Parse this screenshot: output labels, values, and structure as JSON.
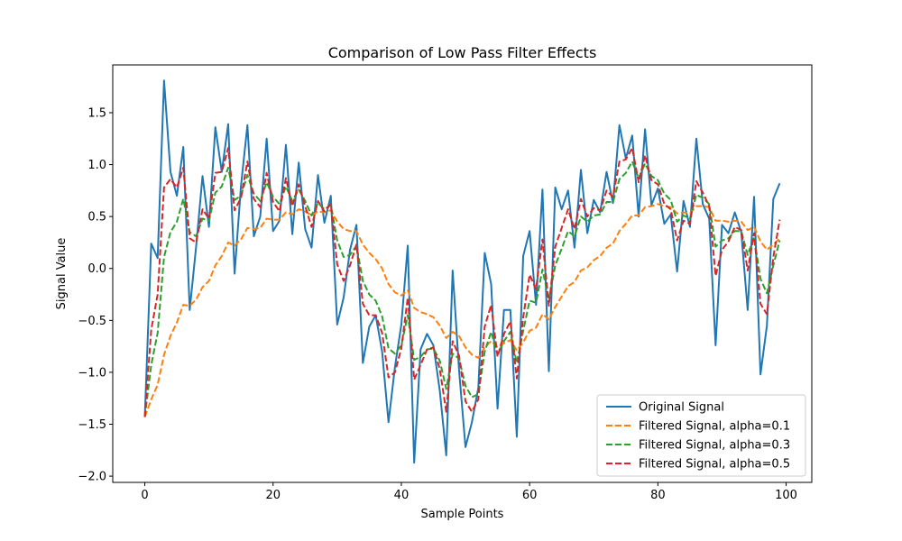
{
  "chart_data": {
    "type": "line",
    "title": "Comparison of Low Pass Filter Effects",
    "xlabel": "Sample Points",
    "ylabel": "Signal Value",
    "xlim": [
      -5,
      104
    ],
    "ylim": [
      -2.06,
      1.96
    ],
    "x_ticks": [
      0,
      20,
      40,
      60,
      80,
      100
    ],
    "x_tick_labels": [
      "0",
      "20",
      "40",
      "60",
      "80",
      "100"
    ],
    "y_ticks": [
      -2.0,
      -1.5,
      -1.0,
      -0.5,
      0.0,
      0.5,
      1.0,
      1.5
    ],
    "y_tick_labels": [
      "−2.0",
      "−1.5",
      "−1.0",
      "−0.5",
      "0.0",
      "0.5",
      "1.0",
      "1.5"
    ],
    "grid": false,
    "legend_position": "lower-right",
    "x": [
      0,
      1,
      2,
      3,
      4,
      5,
      6,
      7,
      8,
      9,
      10,
      11,
      12,
      13,
      14,
      15,
      16,
      17,
      18,
      19,
      20,
      21,
      22,
      23,
      24,
      25,
      26,
      27,
      28,
      29,
      30,
      31,
      32,
      33,
      34,
      35,
      36,
      37,
      38,
      39,
      40,
      41,
      42,
      43,
      44,
      45,
      46,
      47,
      48,
      49,
      50,
      51,
      52,
      53,
      54,
      55,
      56,
      57,
      58,
      59,
      60,
      61,
      62,
      63,
      64,
      65,
      66,
      67,
      68,
      69,
      70,
      71,
      72,
      73,
      74,
      75,
      76,
      77,
      78,
      79,
      80,
      81,
      82,
      83,
      84,
      85,
      86,
      87,
      88,
      89,
      90,
      91,
      92,
      93,
      94,
      95,
      96,
      97,
      98,
      99
    ],
    "series": [
      {
        "name": "Original Signal",
        "color": "#1f77b4",
        "style": "solid",
        "values": [
          -1.43,
          0.24,
          0.1,
          1.81,
          0.93,
          0.7,
          1.17,
          -0.4,
          0.21,
          0.89,
          0.4,
          1.36,
          0.93,
          1.39,
          -0.05,
          0.8,
          1.38,
          0.31,
          0.5,
          1.25,
          0.36,
          0.46,
          1.19,
          0.33,
          1.02,
          0.38,
          0.2,
          0.9,
          0.44,
          0.7,
          -0.54,
          -0.28,
          0.18,
          0.42,
          -0.91,
          -0.56,
          -0.45,
          -0.8,
          -1.48,
          -0.95,
          -0.54,
          0.22,
          -1.87,
          -0.78,
          -0.63,
          -0.74,
          -1.18,
          -1.8,
          -0.02,
          -0.98,
          -1.72,
          -1.48,
          -1.15,
          0.15,
          -0.15,
          -1.35,
          -0.4,
          -0.4,
          -1.62,
          0.12,
          0.36,
          -0.35,
          0.76,
          -0.99,
          0.78,
          0.57,
          0.75,
          0.2,
          0.95,
          0.34,
          0.66,
          0.54,
          0.93,
          0.63,
          1.38,
          1.06,
          1.28,
          0.5,
          1.34,
          0.61,
          0.77,
          0.43,
          0.52,
          -0.03,
          0.65,
          0.4,
          1.25,
          0.62,
          0.48,
          -0.74,
          0.42,
          0.34,
          0.54,
          0.35,
          -0.4,
          0.69,
          -1.02,
          -0.55,
          0.67,
          0.82
        ]
      },
      {
        "name": "Filtered Signal, alpha=0.1",
        "color": "#ff7f0e",
        "style": "dashed",
        "values": [
          -1.43,
          -1.26,
          -1.12,
          -0.83,
          -0.65,
          -0.52,
          -0.35,
          -0.36,
          -0.3,
          -0.18,
          -0.12,
          0.03,
          0.12,
          0.25,
          0.22,
          0.28,
          0.39,
          0.38,
          0.39,
          0.48,
          0.47,
          0.47,
          0.54,
          0.52,
          0.57,
          0.55,
          0.51,
          0.55,
          0.54,
          0.56,
          0.45,
          0.38,
          0.36,
          0.36,
          0.23,
          0.15,
          0.09,
          0.0,
          -0.15,
          -0.23,
          -0.26,
          -0.21,
          -0.38,
          -0.42,
          -0.44,
          -0.47,
          -0.55,
          -0.67,
          -0.61,
          -0.65,
          -0.76,
          -0.83,
          -0.86,
          -0.76,
          -0.7,
          -0.76,
          -0.72,
          -0.69,
          -0.79,
          -0.71,
          -0.6,
          -0.57,
          -0.44,
          -0.49,
          -0.37,
          -0.27,
          -0.17,
          -0.13,
          -0.02,
          0.01,
          0.08,
          0.12,
          0.2,
          0.24,
          0.36,
          0.43,
          0.51,
          0.51,
          0.59,
          0.6,
          0.62,
          0.6,
          0.59,
          0.53,
          0.54,
          0.53,
          0.6,
          0.6,
          0.59,
          0.46,
          0.46,
          0.45,
          0.46,
          0.45,
          0.37,
          0.4,
          0.26,
          0.18,
          0.23,
          0.29
        ]
      },
      {
        "name": "Filtered Signal, alpha=0.3",
        "color": "#2ca02c",
        "style": "dashed",
        "values": [
          -1.43,
          -0.93,
          -0.62,
          0.11,
          0.35,
          0.45,
          0.67,
          0.35,
          0.31,
          0.48,
          0.46,
          0.73,
          0.79,
          0.97,
          0.66,
          0.7,
          0.9,
          0.72,
          0.65,
          0.83,
          0.69,
          0.62,
          0.79,
          0.65,
          0.76,
          0.65,
          0.51,
          0.63,
          0.57,
          0.61,
          0.27,
          0.11,
          0.13,
          0.22,
          -0.12,
          -0.25,
          -0.31,
          -0.46,
          -0.77,
          -0.82,
          -0.74,
          -0.45,
          -0.88,
          -0.85,
          -0.78,
          -0.77,
          -0.89,
          -1.16,
          -0.82,
          -0.87,
          -1.13,
          -1.24,
          -1.21,
          -0.8,
          -0.61,
          -0.83,
          -0.7,
          -0.61,
          -0.91,
          -0.6,
          -0.31,
          -0.33,
          -0.01,
          -0.3,
          0.03,
          0.19,
          0.36,
          0.31,
          0.5,
          0.45,
          0.51,
          0.52,
          0.64,
          0.64,
          0.86,
          0.92,
          1.03,
          0.87,
          1.01,
          0.89,
          0.85,
          0.72,
          0.66,
          0.45,
          0.51,
          0.48,
          0.71,
          0.68,
          0.62,
          0.21,
          0.27,
          0.29,
          0.36,
          0.36,
          0.13,
          0.3,
          -0.1,
          -0.24,
          0.03,
          0.27
        ]
      },
      {
        "name": "Filtered Signal, alpha=0.5",
        "color": "#d62728",
        "style": "dashed",
        "values": [
          -1.43,
          -0.59,
          -0.25,
          0.78,
          0.86,
          0.78,
          0.97,
          0.29,
          0.25,
          0.57,
          0.48,
          0.92,
          0.93,
          1.16,
          0.56,
          0.68,
          1.03,
          0.67,
          0.59,
          0.92,
          0.64,
          0.55,
          0.87,
          0.6,
          0.81,
          0.6,
          0.4,
          0.65,
          0.55,
          0.62,
          0.04,
          -0.12,
          0.03,
          0.23,
          -0.34,
          -0.45,
          -0.45,
          -0.62,
          -1.05,
          -1.0,
          -0.77,
          -0.28,
          -1.07,
          -0.93,
          -0.78,
          -0.76,
          -0.97,
          -1.38,
          -0.7,
          -0.84,
          -1.28,
          -1.38,
          -1.26,
          -0.56,
          -0.35,
          -0.85,
          -0.63,
          -0.51,
          -1.06,
          -0.47,
          -0.06,
          -0.2,
          0.28,
          -0.36,
          0.21,
          0.39,
          0.57,
          0.38,
          0.67,
          0.5,
          0.58,
          0.56,
          0.75,
          0.69,
          1.03,
          1.05,
          1.16,
          0.83,
          1.09,
          0.85,
          0.81,
          0.62,
          0.57,
          0.27,
          0.46,
          0.43,
          0.84,
          0.73,
          0.6,
          -0.07,
          0.18,
          0.26,
          0.4,
          0.37,
          -0.02,
          0.34,
          -0.34,
          -0.44,
          0.11,
          0.47
        ]
      }
    ]
  }
}
